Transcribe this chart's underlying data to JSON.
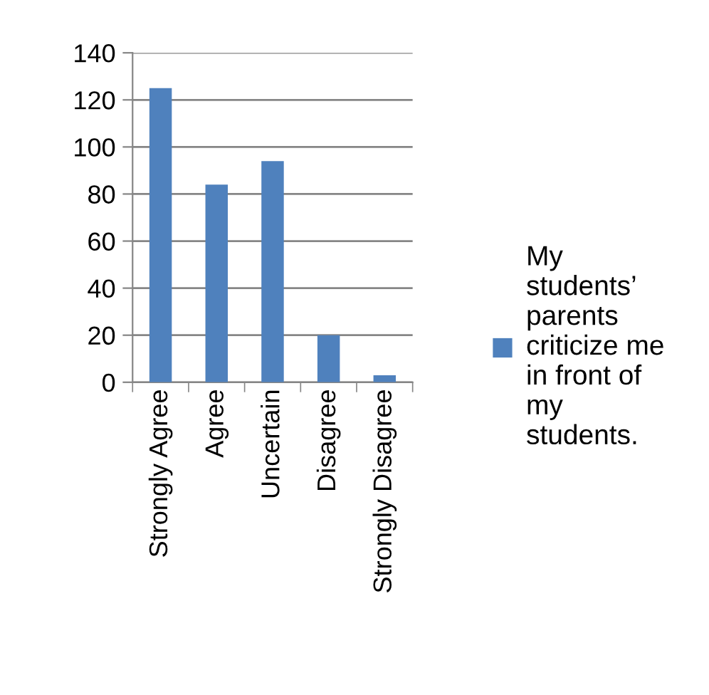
{
  "chart_data": {
    "type": "bar",
    "categories": [
      "Strongly Agree",
      "Agree",
      "Uncertain",
      "Disagree",
      "Strongly Disagree"
    ],
    "series": [
      {
        "name": "My\nstudents’\nparents\ncriticize me\nin front of\nmy\nstudents.",
        "color": "#4f81bd",
        "values": [
          125,
          84,
          94,
          20,
          3
        ]
      }
    ],
    "ylim": [
      0,
      140
    ],
    "yticks": [
      0,
      20,
      40,
      60,
      80,
      100,
      120,
      140
    ],
    "grid": "y",
    "legend": "right"
  }
}
